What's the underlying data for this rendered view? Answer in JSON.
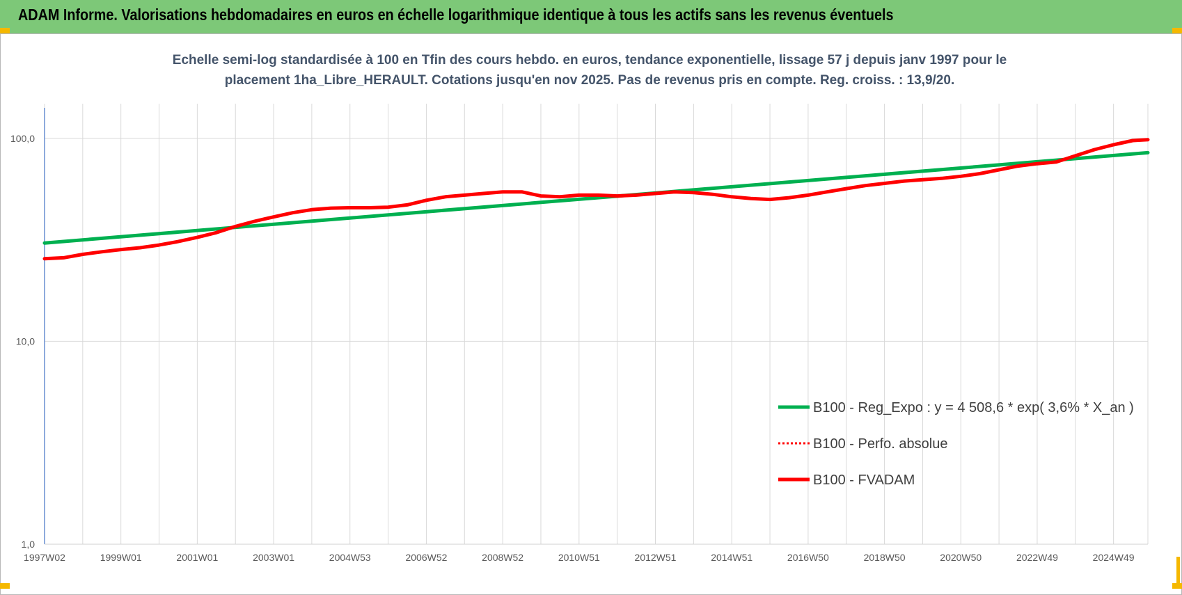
{
  "header": {
    "title": "ADAM Informe. Valorisations hebdomadaires en euros en échelle logarithmique identique à tous les actifs sans les revenus éventuels"
  },
  "colors": {
    "header_bg": "#7dc878",
    "reg_expo": "#00b050",
    "perfo": "#ff0000",
    "fvadam": "#ff0000",
    "grid": "#d9d9d9",
    "accent_corner": "#f5b800"
  },
  "chart_data": {
    "type": "line",
    "title_lines": [
      "Echelle semi-log standardisée à 100 en Tfin des cours hebdo. en euros, tendance exponentielle, lissage 57 j depuis janv 1997 pour le",
      "placement 1ha_Libre_HERAULT. Cotations jusqu'en nov 2025. Pas de revenus pris en compte. Reg. croiss. : 13,9/20."
    ],
    "y_scale": "log",
    "ylim": [
      1,
      200
    ],
    "y_ticks": [
      {
        "value": 1,
        "label": "1,0"
      },
      {
        "value": 10,
        "label": "10,0"
      },
      {
        "value": 100,
        "label": "100,0"
      }
    ],
    "xlim": [
      1997.0,
      2025.9
    ],
    "x_ticks": [
      {
        "x": 1997.0,
        "label": "1997W02"
      },
      {
        "x": 1999.0,
        "label": "1999W01"
      },
      {
        "x": 2001.0,
        "label": "2001W01"
      },
      {
        "x": 2003.0,
        "label": "2003W01"
      },
      {
        "x": 2005.0,
        "label": "2004W53"
      },
      {
        "x": 2007.0,
        "label": "2006W52"
      },
      {
        "x": 2009.0,
        "label": "2008W52"
      },
      {
        "x": 2011.0,
        "label": "2010W51"
      },
      {
        "x": 2013.0,
        "label": "2012W51"
      },
      {
        "x": 2015.0,
        "label": "2014W51"
      },
      {
        "x": 2017.0,
        "label": "2016W50"
      },
      {
        "x": 2019.0,
        "label": "2018W50"
      },
      {
        "x": 2021.0,
        "label": "2020W50"
      },
      {
        "x": 2023.0,
        "label": "2022W49"
      },
      {
        "x": 2025.0,
        "label": "2024W49"
      }
    ],
    "grid": true,
    "legend_position": "bottom-right",
    "series": [
      {
        "name": "B100 - Reg_Expo : y = 4 508,6 * exp( 3,6% *  X_an )",
        "style": "solid",
        "points": [
          [
            1997.0,
            30.5
          ],
          [
            2025.9,
            85.0
          ]
        ]
      },
      {
        "name": "B100 - Perfo. absolue",
        "style": "dotted",
        "points": []
      },
      {
        "name": "B100 - FVADAM",
        "style": "solid",
        "points": [
          [
            1997.0,
            25.5
          ],
          [
            1997.5,
            25.8
          ],
          [
            1998.0,
            26.8
          ],
          [
            1998.5,
            27.6
          ],
          [
            1999.0,
            28.3
          ],
          [
            1999.5,
            28.9
          ],
          [
            2000.0,
            29.8
          ],
          [
            2000.5,
            31.0
          ],
          [
            2001.0,
            32.5
          ],
          [
            2001.5,
            34.3
          ],
          [
            2002.0,
            36.8
          ],
          [
            2002.5,
            39.0
          ],
          [
            2003.0,
            41.0
          ],
          [
            2003.5,
            43.0
          ],
          [
            2004.0,
            44.5
          ],
          [
            2004.5,
            45.3
          ],
          [
            2005.0,
            45.5
          ],
          [
            2005.5,
            45.5
          ],
          [
            2006.0,
            45.8
          ],
          [
            2006.5,
            47.0
          ],
          [
            2007.0,
            49.5
          ],
          [
            2007.5,
            51.5
          ],
          [
            2008.0,
            52.5
          ],
          [
            2008.5,
            53.5
          ],
          [
            2009.0,
            54.5
          ],
          [
            2009.5,
            54.5
          ],
          [
            2010.0,
            52.0
          ],
          [
            2010.5,
            51.5
          ],
          [
            2011.0,
            52.5
          ],
          [
            2011.5,
            52.5
          ],
          [
            2012.0,
            52.0
          ],
          [
            2012.5,
            52.5
          ],
          [
            2013.0,
            53.5
          ],
          [
            2013.5,
            54.5
          ],
          [
            2014.0,
            54.0
          ],
          [
            2014.5,
            53.0
          ],
          [
            2015.0,
            51.5
          ],
          [
            2015.5,
            50.5
          ],
          [
            2016.0,
            50.0
          ],
          [
            2016.5,
            51.0
          ],
          [
            2017.0,
            52.5
          ],
          [
            2017.5,
            54.5
          ],
          [
            2018.0,
            56.5
          ],
          [
            2018.5,
            58.5
          ],
          [
            2019.0,
            60.0
          ],
          [
            2019.5,
            61.5
          ],
          [
            2020.0,
            62.5
          ],
          [
            2020.5,
            63.5
          ],
          [
            2021.0,
            65.0
          ],
          [
            2021.5,
            67.0
          ],
          [
            2022.0,
            70.0
          ],
          [
            2022.5,
            73.0
          ],
          [
            2023.0,
            75.0
          ],
          [
            2023.5,
            76.5
          ],
          [
            2024.0,
            82.0
          ],
          [
            2024.5,
            88.0
          ],
          [
            2025.0,
            93.0
          ],
          [
            2025.5,
            97.5
          ],
          [
            2025.9,
            98.5
          ]
        ]
      }
    ]
  }
}
